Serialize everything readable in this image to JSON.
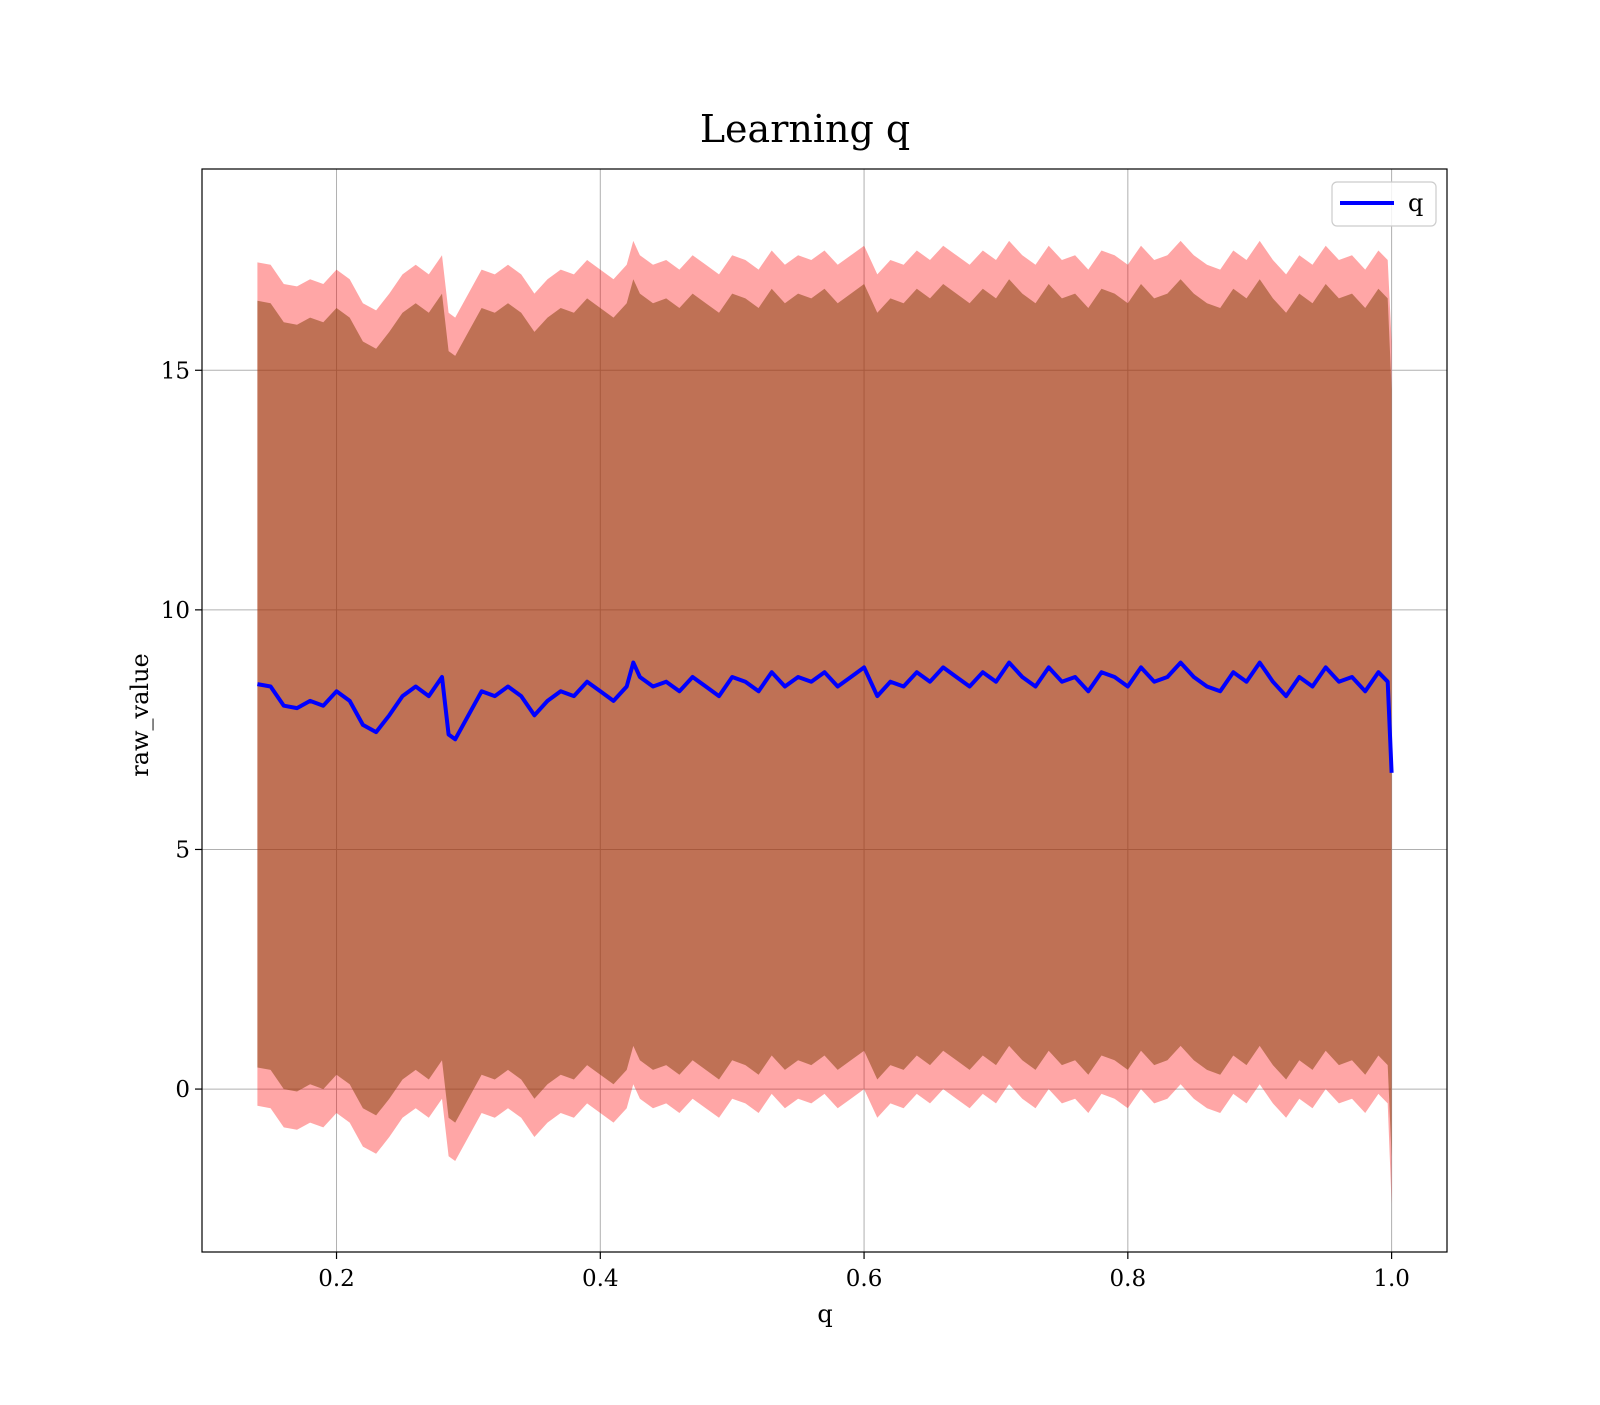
{
  "chart_data": {
    "type": "line",
    "title": "Learning q",
    "xlabel": "q",
    "ylabel": "raw_value",
    "xlim": [
      0.098,
      1.042
    ],
    "ylim": [
      -3.4,
      19.2
    ],
    "xticks": [
      0.2,
      0.4,
      0.6,
      0.8,
      1.0
    ],
    "xtick_labels": [
      "0.2",
      "0.4",
      "0.6",
      "0.8",
      "1.0"
    ],
    "yticks": [
      0,
      5,
      10,
      15
    ],
    "ytick_labels": [
      "0",
      "5",
      "10",
      "15"
    ],
    "grid": true,
    "legend": {
      "placement": "top-right",
      "entries": [
        "q"
      ]
    },
    "colors": {
      "line": "#0000ff",
      "inner_band": "#8b4513",
      "outer_band": "#ff0000",
      "band_overlap": "#a0707a"
    },
    "series": [
      {
        "name": "q",
        "x": [
          0.14,
          0.15,
          0.16,
          0.17,
          0.18,
          0.19,
          0.2,
          0.21,
          0.22,
          0.23,
          0.24,
          0.25,
          0.26,
          0.27,
          0.28,
          0.285,
          0.29,
          0.3,
          0.31,
          0.32,
          0.33,
          0.34,
          0.35,
          0.36,
          0.37,
          0.38,
          0.39,
          0.4,
          0.41,
          0.42,
          0.425,
          0.43,
          0.44,
          0.45,
          0.46,
          0.47,
          0.48,
          0.49,
          0.5,
          0.51,
          0.52,
          0.53,
          0.54,
          0.55,
          0.56,
          0.57,
          0.58,
          0.59,
          0.6,
          0.61,
          0.62,
          0.63,
          0.64,
          0.65,
          0.66,
          0.67,
          0.68,
          0.69,
          0.7,
          0.71,
          0.72,
          0.73,
          0.74,
          0.75,
          0.76,
          0.77,
          0.78,
          0.79,
          0.8,
          0.81,
          0.82,
          0.83,
          0.84,
          0.85,
          0.86,
          0.87,
          0.88,
          0.89,
          0.9,
          0.91,
          0.92,
          0.93,
          0.94,
          0.95,
          0.96,
          0.97,
          0.98,
          0.99,
          0.997,
          1.0
        ],
        "y": [
          8.45,
          8.4,
          8.0,
          7.95,
          8.1,
          8.0,
          8.3,
          8.1,
          7.6,
          7.45,
          7.8,
          8.2,
          8.4,
          8.2,
          8.6,
          7.4,
          7.3,
          7.8,
          8.3,
          8.2,
          8.4,
          8.2,
          7.8,
          8.1,
          8.3,
          8.2,
          8.5,
          8.3,
          8.1,
          8.4,
          8.9,
          8.6,
          8.4,
          8.5,
          8.3,
          8.6,
          8.4,
          8.2,
          8.6,
          8.5,
          8.3,
          8.7,
          8.4,
          8.6,
          8.5,
          8.7,
          8.4,
          8.6,
          8.8,
          8.2,
          8.5,
          8.4,
          8.7,
          8.5,
          8.8,
          8.6,
          8.4,
          8.7,
          8.5,
          8.9,
          8.6,
          8.4,
          8.8,
          8.5,
          8.6,
          8.3,
          8.7,
          8.6,
          8.4,
          8.8,
          8.5,
          8.6,
          8.9,
          8.6,
          8.4,
          8.3,
          8.7,
          8.5,
          8.9,
          8.5,
          8.2,
          8.6,
          8.4,
          8.8,
          8.5,
          8.6,
          8.3,
          8.7,
          8.5,
          6.6
        ],
        "inner_band_halfwidth": 8.0,
        "outer_band_halfwidth": 8.8,
        "outer_band_halfwidth_end": 9.0
      }
    ]
  }
}
